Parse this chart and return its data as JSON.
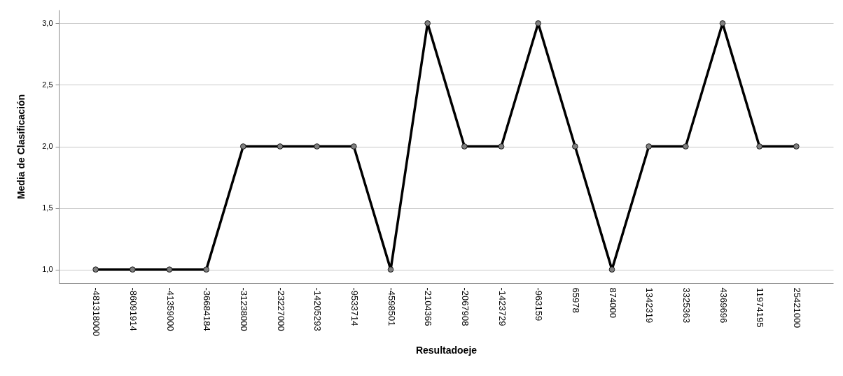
{
  "chart_data": {
    "type": "line",
    "xlabel": "Resultadoeje",
    "ylabel": "Media de Clasificación",
    "categories": [
      "-481318000",
      "-86091914",
      "-41359000",
      "-36684184",
      "-31238000",
      "-23227000",
      "-14205293",
      "-9533714",
      "-4598501",
      "-2104366",
      "-2067908",
      "-1423729",
      "-963159",
      "65978",
      "874000",
      "1342319",
      "3325363",
      "4369696",
      "11974195",
      "25421000"
    ],
    "series": [
      {
        "color": "#000000",
        "values": [
          1,
          1,
          1,
          1,
          2,
          2,
          2,
          2,
          1,
          3,
          2,
          2,
          3,
          2,
          1,
          2,
          2,
          3,
          2,
          2
        ]
      }
    ],
    "ylim": [
      0.89,
      3.11
    ],
    "yticks": [
      {
        "value": 1,
        "label": "1,0"
      },
      {
        "value": 1.5,
        "label": "1,5"
      },
      {
        "value": 2,
        "label": "2,0"
      },
      {
        "value": 2.5,
        "label": "2,5"
      },
      {
        "value": 3,
        "label": "3,0"
      }
    ],
    "grid": "y",
    "marker": "circle",
    "line_style": "solid"
  }
}
